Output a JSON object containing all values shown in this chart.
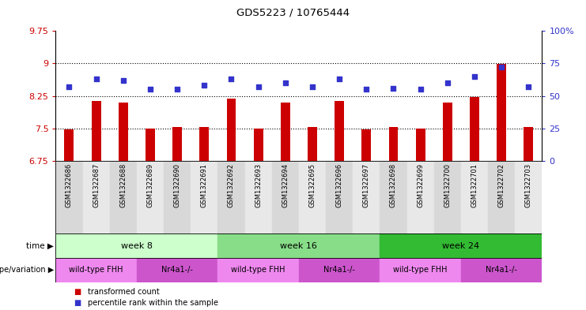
{
  "title": "GDS5223 / 10765444",
  "samples": [
    "GSM1322686",
    "GSM1322687",
    "GSM1322688",
    "GSM1322689",
    "GSM1322690",
    "GSM1322691",
    "GSM1322692",
    "GSM1322693",
    "GSM1322694",
    "GSM1322695",
    "GSM1322696",
    "GSM1322697",
    "GSM1322698",
    "GSM1322699",
    "GSM1322700",
    "GSM1322701",
    "GSM1322702",
    "GSM1322703"
  ],
  "transformed_count": [
    7.48,
    8.14,
    8.09,
    7.49,
    7.54,
    7.54,
    8.19,
    7.49,
    8.09,
    7.54,
    8.14,
    7.48,
    7.54,
    7.49,
    8.09,
    8.23,
    8.99,
    7.54
  ],
  "percentile_rank": [
    57,
    63,
    62,
    55,
    55,
    58,
    63,
    57,
    60,
    57,
    63,
    55,
    56,
    55,
    60,
    65,
    72,
    57
  ],
  "bar_color": "#cc0000",
  "dot_color": "#3333cc",
  "ylim_left": [
    6.75,
    9.75
  ],
  "ylim_right": [
    0,
    100
  ],
  "yticks_left": [
    6.75,
    7.5,
    8.25,
    9.0,
    9.75
  ],
  "yticks_right": [
    0,
    25,
    50,
    75,
    100
  ],
  "ytick_labels_left": [
    "6.75",
    "7.5",
    "8.25",
    "9",
    "9.75"
  ],
  "ytick_labels_right": [
    "0",
    "25",
    "50",
    "75",
    "100%"
  ],
  "hlines": [
    7.5,
    8.25,
    9.0
  ],
  "time_groups": [
    {
      "label": "week 8",
      "start": 0,
      "end": 6,
      "color": "#ccffcc"
    },
    {
      "label": "week 16",
      "start": 6,
      "end": 12,
      "color": "#88dd88"
    },
    {
      "label": "week 24",
      "start": 12,
      "end": 18,
      "color": "#33bb33"
    }
  ],
  "genotype_groups": [
    {
      "label": "wild-type FHH",
      "start": 0,
      "end": 3,
      "color": "#ee88ee"
    },
    {
      "label": "Nr4a1-/-",
      "start": 3,
      "end": 6,
      "color": "#cc55cc"
    },
    {
      "label": "wild-type FHH",
      "start": 6,
      "end": 9,
      "color": "#ee88ee"
    },
    {
      "label": "Nr4a1-/-",
      "start": 9,
      "end": 12,
      "color": "#cc55cc"
    },
    {
      "label": "wild-type FHH",
      "start": 12,
      "end": 15,
      "color": "#ee88ee"
    },
    {
      "label": "Nr4a1-/-",
      "start": 15,
      "end": 18,
      "color": "#cc55cc"
    }
  ],
  "time_row_label": "time",
  "genotype_row_label": "genotype/variation",
  "legend_bar_label": "transformed count",
  "legend_dot_label": "percentile rank within the sample",
  "bar_width": 0.35,
  "background_color": "#ffffff",
  "tick_color_left": "#cc0000",
  "tick_color_right": "#3333cc",
  "label_bg_even": "#d8d8d8",
  "label_bg_odd": "#e8e8e8"
}
